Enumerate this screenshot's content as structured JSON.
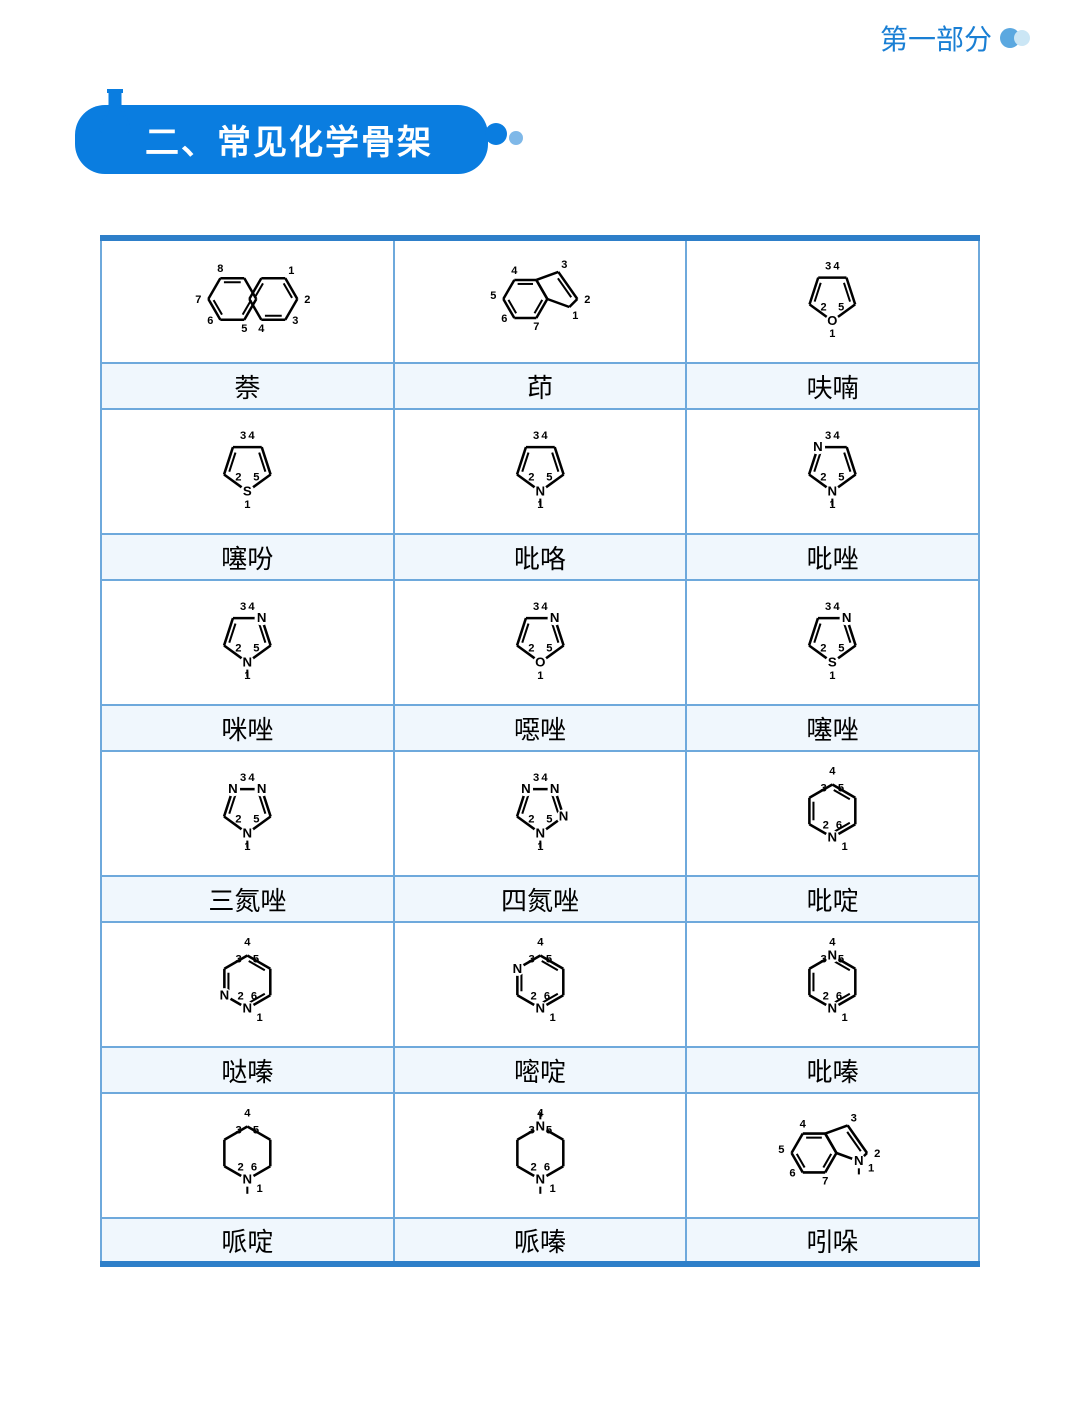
{
  "header": {
    "section_label": "第一部分"
  },
  "title": {
    "text": "二、常见化学骨架"
  },
  "table": {
    "border_color": "#6ea9dc",
    "thick_border_color": "#2e7fc9",
    "label_bg": "#f0f7fd",
    "structure_stroke": "#000000",
    "rows": [
      [
        {
          "name": "萘",
          "type": "naphthalene"
        },
        {
          "name": "茚",
          "type": "indene"
        },
        {
          "name": "呋喃",
          "type": "furan"
        }
      ],
      [
        {
          "name": "噻吩",
          "type": "thiophene"
        },
        {
          "name": "吡咯",
          "type": "pyrrole"
        },
        {
          "name": "吡唑",
          "type": "pyrazole"
        }
      ],
      [
        {
          "name": "咪唑",
          "type": "imidazole"
        },
        {
          "name": "噁唑",
          "type": "oxazole"
        },
        {
          "name": "噻唑",
          "type": "thiazole"
        }
      ],
      [
        {
          "name": "三氮唑",
          "type": "triazole"
        },
        {
          "name": "四氮唑",
          "type": "tetrazole"
        },
        {
          "name": "吡啶",
          "type": "pyridine"
        }
      ],
      [
        {
          "name": "哒嗪",
          "type": "pyridazine"
        },
        {
          "name": "嘧啶",
          "type": "pyrimidine"
        },
        {
          "name": "吡嗪",
          "type": "pyrazine"
        }
      ],
      [
        {
          "name": "哌啶",
          "type": "piperidine"
        },
        {
          "name": "哌嗪",
          "type": "piperazine"
        },
        {
          "name": "吲哚",
          "type": "indole"
        }
      ]
    ]
  }
}
